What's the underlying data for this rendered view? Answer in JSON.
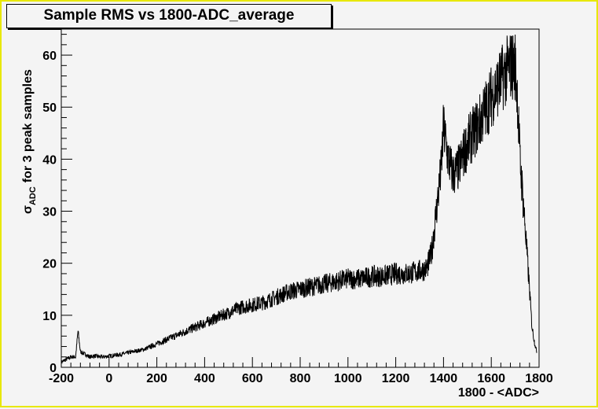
{
  "chart_data": {
    "type": "line",
    "title": "Sample RMS vs 1800-ADC_average",
    "xlabel": "1800 - <ADC>",
    "ylabel_main": "σ",
    "ylabel_sub": "ADC",
    "ylabel_rest": "for 3 peak samples",
    "xlim": [
      -200,
      1800
    ],
    "ylim": [
      0,
      65
    ],
    "xticks": [
      -200,
      0,
      200,
      400,
      600,
      800,
      1000,
      1200,
      1400,
      1600,
      1800
    ],
    "yticks": [
      0,
      10,
      20,
      30,
      40,
      50,
      60
    ],
    "grid": false,
    "x": [
      -200,
      -180,
      -160,
      -140,
      -130,
      -120,
      -100,
      -80,
      -60,
      -40,
      -20,
      0,
      20,
      50,
      80,
      100,
      150,
      200,
      250,
      300,
      350,
      400,
      450,
      500,
      550,
      600,
      650,
      700,
      750,
      800,
      850,
      900,
      950,
      1000,
      1050,
      1100,
      1150,
      1200,
      1250,
      1300,
      1330,
      1350,
      1370,
      1390,
      1400,
      1420,
      1440,
      1460,
      1500,
      1550,
      1600,
      1650,
      1680,
      1700,
      1710,
      1720,
      1740,
      1760,
      1770,
      1780,
      1790
    ],
    "y": [
      1,
      1.5,
      2,
      2,
      7,
      3,
      2.5,
      2,
      2.2,
      2,
      2,
      2.2,
      2.3,
      2.5,
      2.8,
      3,
      3.5,
      4.5,
      5.5,
      6.5,
      7.5,
      8.5,
      9.5,
      10.5,
      11.5,
      12,
      12.5,
      13.5,
      14.5,
      15,
      15.5,
      16,
      16.5,
      17,
      17,
      17.5,
      17.5,
      18,
      18,
      18.5,
      19,
      22,
      30,
      38,
      46,
      40,
      37,
      38,
      43,
      47,
      52,
      56,
      58,
      58,
      52,
      40,
      28,
      15,
      8,
      5,
      3
    ]
  }
}
